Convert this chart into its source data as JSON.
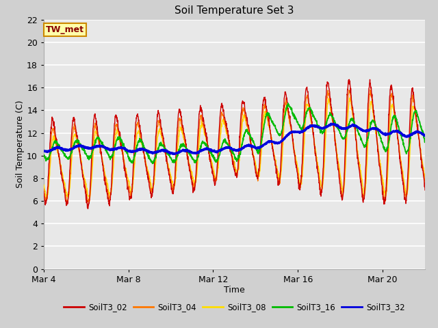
{
  "title": "Soil Temperature Set 3",
  "xlabel": "Time",
  "ylabel": "Soil Temperature (C)",
  "annotation": "TW_met",
  "ylim": [
    0,
    22
  ],
  "yticks": [
    0,
    2,
    4,
    6,
    8,
    10,
    12,
    14,
    16,
    18,
    20,
    22
  ],
  "bg_color": "#e8e8e8",
  "series_colors": {
    "SoilT3_02": "#cc0000",
    "SoilT3_04": "#ff7700",
    "SoilT3_08": "#ffdd00",
    "SoilT3_16": "#00bb00",
    "SoilT3_32": "#0000dd"
  },
  "xstart": 4,
  "xend": 22,
  "xtick_labels": [
    "Mar 4",
    "Mar 8",
    "Mar 12",
    "Mar 16",
    "Mar 20"
  ],
  "xtick_positions": [
    4,
    8,
    12,
    16,
    20
  ],
  "fig_bg": "#d0d0d0"
}
